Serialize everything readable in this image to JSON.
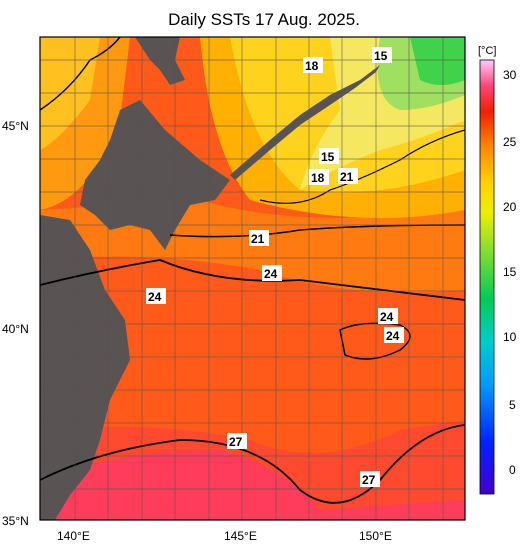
{
  "title": "Daily SSTs 17 Aug. 2025.",
  "lat_labels": [
    "45°N",
    "40°N",
    "35°N"
  ],
  "lon_labels": [
    "140°E",
    "145°E",
    "150°E"
  ],
  "colorbar": {
    "unit": "[°C]",
    "ticks": [
      "30",
      "25",
      "20",
      "15",
      "10",
      "5",
      "0"
    ],
    "colors": [
      "#4a00d0",
      "#0033ff",
      "#0099ff",
      "#00ccdd",
      "#00cc66",
      "#33cc33",
      "#99dd33",
      "#dddd00",
      "#ffdd00",
      "#ffaa00",
      "#ff6600",
      "#ee2200",
      "#ff3366",
      "#ff66cc",
      "#ffccff"
    ]
  },
  "contour_labels": [
    "18",
    "15",
    "15",
    "18",
    "21",
    "21",
    "24",
    "24",
    "24",
    "24",
    "27",
    "27"
  ],
  "colors": {
    "land": "#595353",
    "warm": "#ff4a18",
    "hot": "#ff3c52",
    "cool": "#ffd21e",
    "cold": "#3fd24a"
  }
}
